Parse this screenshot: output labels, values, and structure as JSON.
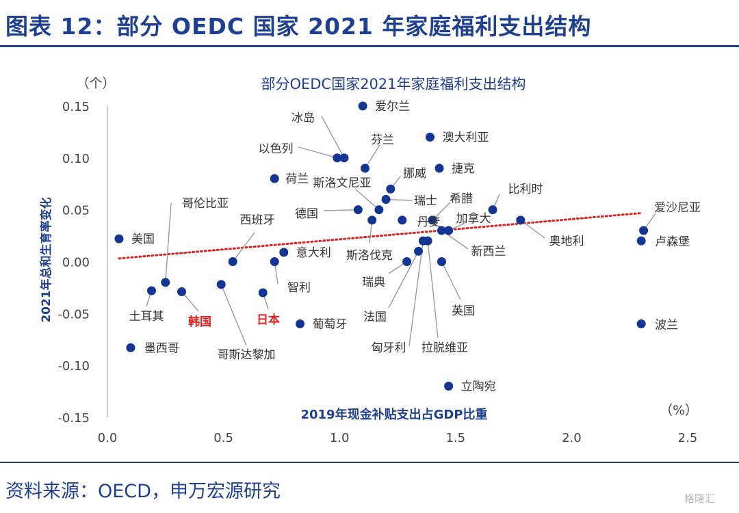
{
  "figure_title": "图表 12：部分 OEDC 国家 2021 年家庭福利支出结构",
  "source": "资料来源：OECD，申万宏源研究",
  "watermark": "格隆汇",
  "colors": {
    "brand": "#1f3f8f",
    "point": "#143592",
    "trend": "#e02020",
    "highlight_label": "#e02020",
    "label": "#333333",
    "leader": "#9a9a9a"
  },
  "chart_data": {
    "type": "scatter",
    "title": "部分OEDC国家2021年家庭福利支出结构",
    "xlabel": "2019年现金补贴支出占GDP比重",
    "ylabel": "2021年总和生育率变化",
    "x_unit": "（%）",
    "y_unit": "（个）",
    "xlim": [
      0.0,
      2.5
    ],
    "ylim": [
      -0.15,
      0.15
    ],
    "x_ticks": [
      "0.0",
      "0.5",
      "1.0",
      "1.5",
      "2.0",
      "2.5"
    ],
    "y_ticks": [
      "0.15",
      "0.10",
      "0.05",
      "0.00",
      "-0.05",
      "-0.10",
      "-0.15"
    ],
    "grid": false,
    "trendline": {
      "type": "linear",
      "style": "dotted",
      "x_range": [
        0.05,
        2.3
      ]
    },
    "points": [
      {
        "label": "美国",
        "x": 0.05,
        "y": 0.022
      },
      {
        "label": "墨西哥",
        "x": 0.1,
        "y": -0.083
      },
      {
        "label": "土耳其",
        "x": 0.19,
        "y": -0.028
      },
      {
        "label": "哥伦比亚",
        "x": 0.25,
        "y": -0.02
      },
      {
        "label": "韩国",
        "x": 0.32,
        "y": -0.029,
        "highlight": true
      },
      {
        "label": "哥斯达黎加",
        "x": 0.49,
        "y": -0.022
      },
      {
        "label": "西班牙",
        "x": 0.54,
        "y": 0.0
      },
      {
        "label": "日本",
        "x": 0.67,
        "y": -0.03,
        "highlight": true
      },
      {
        "label": "智利",
        "x": 0.72,
        "y": 0.0
      },
      {
        "label": "荷兰",
        "x": 0.72,
        "y": 0.08
      },
      {
        "label": "意大利",
        "x": 0.76,
        "y": 0.009
      },
      {
        "label": "葡萄牙",
        "x": 0.83,
        "y": -0.06
      },
      {
        "label": "以色列",
        "x": 0.99,
        "y": 0.1
      },
      {
        "label": "冰岛",
        "x": 1.02,
        "y": 0.1
      },
      {
        "label": "德国",
        "x": 1.08,
        "y": 0.05
      },
      {
        "label": "爱尔兰",
        "x": 1.1,
        "y": 0.15
      },
      {
        "label": "芬兰",
        "x": 1.11,
        "y": 0.09
      },
      {
        "label": "斯洛伐克",
        "x": 1.14,
        "y": 0.04
      },
      {
        "label": "斯洛文尼亚",
        "x": 1.17,
        "y": 0.05
      },
      {
        "label": "瑞士",
        "x": 1.2,
        "y": 0.06
      },
      {
        "label": "挪威",
        "x": 1.22,
        "y": 0.07
      },
      {
        "label": "丹麦",
        "x": 1.27,
        "y": 0.04
      },
      {
        "label": "瑞典",
        "x": 1.29,
        "y": 0.0
      },
      {
        "label": "法国",
        "x": 1.34,
        "y": 0.01
      },
      {
        "label": "匈牙利",
        "x": 1.36,
        "y": 0.02
      },
      {
        "label": "拉脱维亚",
        "x": 1.38,
        "y": 0.02
      },
      {
        "label": "澳大利亚",
        "x": 1.39,
        "y": 0.12
      },
      {
        "label": "希腊",
        "x": 1.4,
        "y": 0.04
      },
      {
        "label": "捷克",
        "x": 1.43,
        "y": 0.09
      },
      {
        "label": "新西兰",
        "x": 1.44,
        "y": 0.03
      },
      {
        "label": "英国",
        "x": 1.44,
        "y": 0.0
      },
      {
        "label": "加拿大",
        "x": 1.47,
        "y": 0.03
      },
      {
        "label": "立陶宛",
        "x": 1.47,
        "y": -0.12
      },
      {
        "label": "比利时",
        "x": 1.66,
        "y": 0.05
      },
      {
        "label": "奥地利",
        "x": 1.78,
        "y": 0.04
      },
      {
        "label": "卢森堡",
        "x": 2.3,
        "y": 0.02
      },
      {
        "label": "爱沙尼亚",
        "x": 2.31,
        "y": 0.03
      },
      {
        "label": "波兰",
        "x": 2.3,
        "y": -0.06
      }
    ]
  }
}
